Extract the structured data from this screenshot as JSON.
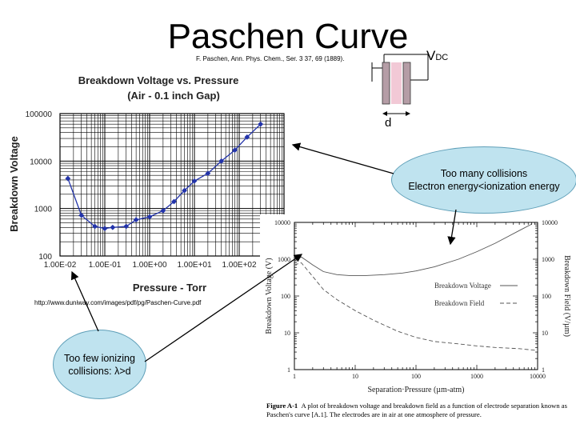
{
  "slide": {
    "title": "Paschen Curve",
    "citation": "F. Paschen, Ann. Phys. Chem., Ser. 3 37, 69 (1889).",
    "vdc_main": "V",
    "vdc_sub": "DC",
    "gap_label": "d",
    "source_url": "http://www.duniway.com/images/pdf/pg/Paschen-Curve.pdf",
    "callout_top_line1": "Too many collisions",
    "callout_top_line2": "Electron energy<ionization energy",
    "callout_bottom_line1": "Too few ionizing",
    "callout_bottom_line2": "collisions: λ>d",
    "caption_bold": "Figure A-1",
    "caption_text": "A plot of breakdown voltage and breakdown field as a function of electrode separation known as Paschen's curve [A.1]. The electrodes are in air at one atmosphere of pressure."
  },
  "chart_data": [
    {
      "type": "line",
      "title": "Breakdown Voltage vs. Pressure",
      "subtitle": "(Air - 0.1 inch Gap)",
      "xlabel": "Pressure - Torr",
      "ylabel": "Breakdown Voltage",
      "x_scale": "log",
      "y_scale": "log",
      "xlim": [
        0.01,
        1000
      ],
      "ylim": [
        100,
        100000
      ],
      "x_tick_labels": [
        "1.00E-02",
        "1.00E-01",
        "1.00E+00",
        "1.00E+01",
        "1.00E+02"
      ],
      "y_tick_labels": [
        "100",
        "1000",
        "10000",
        "100000"
      ],
      "grid": true,
      "line_color": "#2233aa",
      "series": [
        {
          "x": [
            0.015,
            0.03,
            0.06,
            0.1,
            0.15,
            0.3,
            0.5,
            1.0,
            2.0,
            3.5,
            6.0,
            10,
            20,
            40,
            80,
            150,
            300
          ],
          "y": [
            4300,
            720,
            420,
            380,
            400,
            420,
            580,
            670,
            900,
            1400,
            2400,
            3800,
            5500,
            10000,
            17000,
            32000,
            60000
          ]
        }
      ]
    },
    {
      "type": "line",
      "xlabel": "Separation·Pressure (µm-atm)",
      "ylabel": "Breakdown Voltage (V)",
      "y2label": "Breakdown Field (V/µm)",
      "x_scale": "log",
      "y_scale": "log",
      "xlim": [
        1,
        10000
      ],
      "ylim": [
        1,
        10000
      ],
      "x_tick_labels": [
        "1",
        "10",
        "100",
        "1000",
        "10000"
      ],
      "y_tick_labels": [
        "1",
        "10",
        "100",
        "1000",
        "10000"
      ],
      "y2_tick_labels": [
        "1",
        "10",
        "100",
        "1000",
        "10000"
      ],
      "grid": false,
      "series": [
        {
          "name": "Breakdown Voltage",
          "style": "solid",
          "x": [
            1,
            1.3,
            2,
            3,
            5,
            8,
            15,
            30,
            60,
            100,
            200,
            500,
            1000,
            2000,
            5000,
            8000
          ],
          "y": [
            900,
            1150,
            700,
            460,
            380,
            360,
            360,
            380,
            420,
            480,
            620,
            1000,
            1600,
            2700,
            6000,
            9000
          ]
        },
        {
          "name": "Breakdown Field",
          "style": "dashed",
          "x": [
            1,
            1.3,
            2,
            3,
            5,
            10,
            20,
            50,
            100,
            200,
            500,
            1000,
            2000,
            5000,
            10000
          ],
          "y": [
            700,
            800,
            340,
            150,
            80,
            40,
            22,
            11,
            7.5,
            5.8,
            5,
            4.4,
            4,
            3.7,
            3.3
          ]
        }
      ]
    }
  ]
}
